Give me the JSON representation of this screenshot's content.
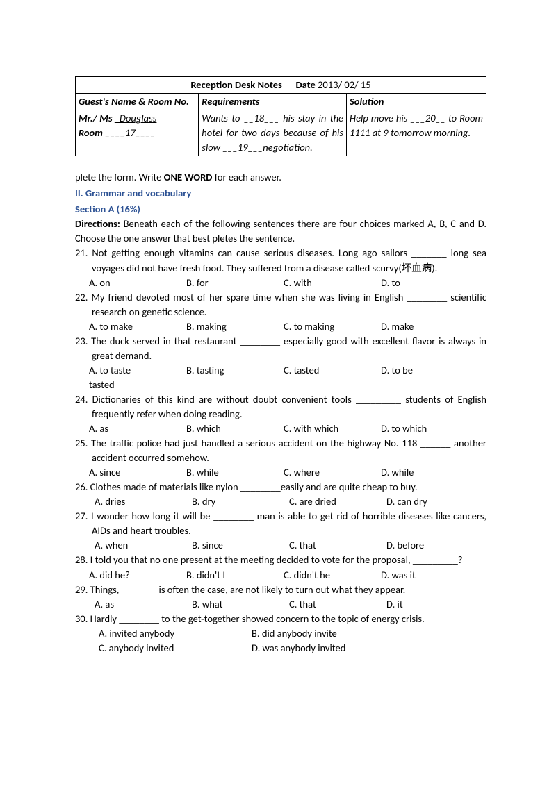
{
  "table": {
    "header_bold": "Reception Desk Notes",
    "header_date_label": "Date",
    "header_date": "2013/ 02/ 15",
    "col1_label": "Guest's Name & Room No.",
    "col2_label": "Requirements",
    "col3_label": "Solution",
    "row_col1_line1_prefix": "Mr./ Ms ",
    "row_col1_line1_blank": "_Douglass",
    "row_col1_line2_prefix": "Room ",
    "row_col1_line2_blank1": "____",
    "row_col1_line2_value": "17",
    "row_col1_line2_blank2": "____",
    "row_col2": "Wants to __18___ his stay in the hotel for two days because of his slow ___19___negotiation.",
    "row_col3": "Help move his ___20__ to Room 1111 at 9 tomorrow morning."
  },
  "plete_line": "plete the form. Write ",
  "plete_bold": "ONE WORD",
  "plete_after": " for each answer.",
  "grammar_header": "II. Grammar and vocabulary",
  "section_a": "Section A (16%)",
  "directions_label": "Directions:",
  "directions_text": " Beneath each of the following sentences there are four choices marked A, B, C and D. Choose the one answer that best pletes the sentence.",
  "questions": [
    {
      "n": "21",
      "lines": [
        "21. Not getting enough vitamins can cause serious diseases. Long ago sailors _______ long sea voyages did not have fresh food. They suffered from a disease called scurvy(坏血病)."
      ],
      "opts": [
        "A. on",
        "B. for",
        "C. with",
        "D. to"
      ]
    },
    {
      "n": "22",
      "lines": [
        "22. My friend devoted most of her spare time when she was living in English ________ scientific research on genetic science."
      ],
      "opts": [
        "A. to make",
        "B. making",
        "C. to making",
        "D. make"
      ]
    },
    {
      "n": "23",
      "lines": [
        "23. The duck served in that restaurant ________ especially good with excellent flavor is always in great demand."
      ],
      "opts": [
        "A. to taste",
        "B. tasting",
        "C. tasted",
        "D. to be"
      ],
      "extra_hang": "tasted"
    },
    {
      "n": "24",
      "lines": [
        "24. Dictionaries of this kind are without doubt convenient tools _________ students of English frequently refer when doing reading."
      ],
      "opts": [
        "A. as",
        "B. which",
        "C. with which",
        "D. to which"
      ]
    },
    {
      "n": "25",
      "lines": [
        "25. The traffic police had just handled a serious accident on the highway No. 118 ______ another accident occurred somehow."
      ],
      "opts": [
        "A. since",
        "B. while",
        "C. where",
        "D. while"
      ]
    },
    {
      "n": "26",
      "lines": [
        "26. Clothes made of materials like nylon ________easily and are quite cheap to buy."
      ],
      "opts": [
        "A. dries",
        "B. dry",
        "C. are dried",
        "D. can dry"
      ],
      "opts_indent": "28px"
    },
    {
      "n": "27",
      "lines": [
        "27. I wonder how long it will be ________ man is able to get rid of horrible diseases like cancers, AIDs and heart troubles."
      ],
      "opts": [
        "A. when",
        "B. since",
        "C. that",
        "D. before"
      ],
      "opts_indent": "28px"
    },
    {
      "n": "28",
      "lines": [
        "28. I told you that no one present at the meeting decided to vote for the proposal, _________?"
      ],
      "opts": [
        "A. did he?",
        "B. didn't I",
        "C. didn't he",
        "D. was it"
      ]
    },
    {
      "n": "29",
      "lines": [
        "29. Things, _______ is often the case, are not likely to turn out what they appear."
      ],
      "opts": [
        "A. as",
        "B. what",
        "C. that",
        "D. it"
      ],
      "opts_indent": "28px"
    },
    {
      "n": "30",
      "lines": [
        "30. Hardly ________ to the get-together showed concern to the topic of energy crisis."
      ],
      "opts_wide": true,
      "opts": [
        "A. invited anybody",
        "B. did anybody invite",
        "C. anybody invited",
        "D. was anybody invited"
      ],
      "opts_indent": "34px"
    }
  ]
}
